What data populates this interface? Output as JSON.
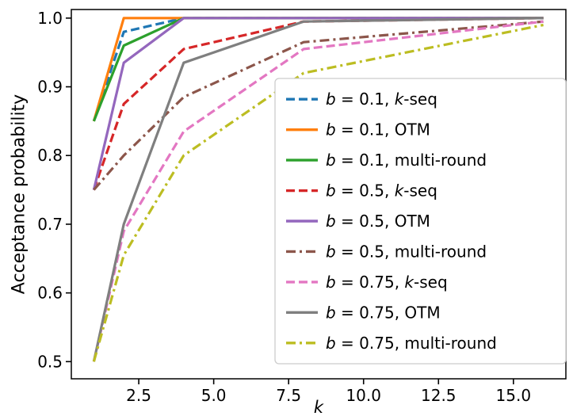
{
  "chart_data": {
    "type": "line",
    "title": "",
    "xlabel": "k",
    "ylabel": "Acceptance probability",
    "grid": false,
    "legend_position": "center right",
    "x": [
      1,
      2,
      4,
      8,
      16
    ],
    "xlim": [
      0.25,
      16.75
    ],
    "ylim": [
      0.475,
      1.0125
    ],
    "xticks": [
      2.5,
      5.0,
      7.5,
      10.0,
      12.5,
      15.0
    ],
    "xtick_labels": [
      "2.5",
      "5.0",
      "7.5",
      "10.0",
      "12.5",
      "15.0"
    ],
    "yticks": [
      0.5,
      0.6,
      0.7,
      0.8,
      0.9,
      1.0
    ],
    "ytick_labels": [
      "0.5",
      "0.6",
      "0.7",
      "0.8",
      "0.9",
      "1.0"
    ],
    "series": [
      {
        "name": "b = 0.1, k-seq",
        "color": "#1f77b4",
        "style": "dashed",
        "values": [
          0.85,
          0.98,
          1.0,
          1.0,
          1.0
        ]
      },
      {
        "name": "b = 0.1, OTM",
        "color": "#ff7f0e",
        "style": "solid",
        "values": [
          0.85,
          1.0,
          1.0,
          1.0,
          1.0
        ]
      },
      {
        "name": "b = 0.1, multi-round",
        "color": "#2ca02c",
        "style": "solid",
        "values": [
          0.85,
          0.96,
          1.0,
          1.0,
          1.0
        ]
      },
      {
        "name": "b = 0.5, k-seq",
        "color": "#d62728",
        "style": "dashed",
        "values": [
          0.75,
          0.875,
          0.955,
          0.995,
          1.0
        ]
      },
      {
        "name": "b = 0.5, OTM",
        "color": "#9467bd",
        "style": "solid",
        "values": [
          0.75,
          0.935,
          1.0,
          1.0,
          1.0
        ]
      },
      {
        "name": "b = 0.5, multi-round",
        "color": "#8c564b",
        "style": "dashdot",
        "values": [
          0.75,
          0.8,
          0.885,
          0.965,
          0.995
        ]
      },
      {
        "name": "b = 0.75, k-seq",
        "color": "#e377c2",
        "style": "dashed",
        "values": [
          0.5,
          0.69,
          0.835,
          0.955,
          0.995
        ]
      },
      {
        "name": "b = 0.75, OTM",
        "color": "#7f7f7f",
        "style": "solid",
        "values": [
          0.5,
          0.7,
          0.935,
          0.995,
          1.0
        ]
      },
      {
        "name": "b = 0.75, multi-round",
        "color": "#bcbd22",
        "style": "dashdot",
        "values": [
          0.5,
          0.655,
          0.8,
          0.92,
          0.99
        ]
      }
    ],
    "colors": {
      "axis": "#000000",
      "legend_border": "#cccccc",
      "legend_bg": "#ffffff"
    }
  }
}
